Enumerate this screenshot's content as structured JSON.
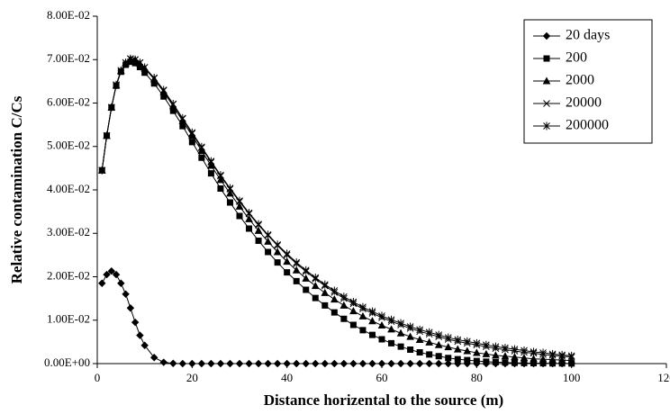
{
  "chart_data": {
    "type": "line",
    "xlabel": "Distance horizental to the source  (m)",
    "ylabel": "Relative contamination C/Cs",
    "x": [
      1,
      2,
      3,
      4,
      5,
      6,
      7,
      8,
      9,
      10,
      12,
      14,
      16,
      18,
      20,
      22,
      24,
      26,
      28,
      30,
      32,
      34,
      36,
      38,
      40,
      42,
      44,
      46,
      48,
      50,
      52,
      54,
      56,
      58,
      60,
      62,
      64,
      66,
      68,
      70,
      72,
      74,
      76,
      78,
      80,
      82,
      84,
      86,
      88,
      90,
      92,
      94,
      96,
      98,
      100
    ],
    "series": [
      {
        "name": "20 days",
        "color": "#000000",
        "marker": "diamond",
        "values": [
          0.0185,
          0.0205,
          0.0213,
          0.0205,
          0.0185,
          0.016,
          0.0128,
          0.0095,
          0.0065,
          0.0042,
          0.0014,
          0.0003,
          5e-05,
          0,
          0,
          0,
          0,
          0,
          0,
          0,
          0,
          0,
          0,
          0,
          0,
          0,
          0,
          0,
          0,
          0,
          0,
          0,
          0,
          0,
          0,
          0,
          0,
          0,
          0,
          0,
          0,
          0,
          0,
          0,
          0,
          0,
          0,
          0,
          0,
          0,
          0,
          0,
          0,
          0,
          0
        ]
      },
      {
        "name": "200",
        "color": "#000000",
        "marker": "square",
        "values": [
          0.0445,
          0.0525,
          0.059,
          0.064,
          0.0672,
          0.0688,
          0.0695,
          0.0692,
          0.0683,
          0.067,
          0.0645,
          0.0615,
          0.0582,
          0.0547,
          0.051,
          0.0474,
          0.0438,
          0.0403,
          0.0371,
          0.034,
          0.0311,
          0.0283,
          0.0257,
          0.0233,
          0.021,
          0.019,
          0.017,
          0.0151,
          0.0134,
          0.0118,
          0.0103,
          0.0089,
          0.0077,
          0.0066,
          0.0056,
          0.0047,
          0.0039,
          0.0032,
          0.0026,
          0.0021,
          0.0017,
          0.0013,
          0.001,
          0.0008,
          0.0006,
          0.00045,
          0.00034,
          0.00025,
          0.00018,
          0.00013,
          0.0001,
          7e-05,
          5e-05,
          4e-05,
          3e-05
        ]
      },
      {
        "name": "2000",
        "color": "#000000",
        "marker": "triangle",
        "values": [
          0.0445,
          0.0525,
          0.059,
          0.0641,
          0.0674,
          0.0692,
          0.0701,
          0.0699,
          0.0691,
          0.068,
          0.0655,
          0.0626,
          0.0593,
          0.0559,
          0.0525,
          0.049,
          0.0456,
          0.0423,
          0.0392,
          0.0362,
          0.0333,
          0.0306,
          0.0281,
          0.0257,
          0.0235,
          0.0215,
          0.0196,
          0.0179,
          0.0163,
          0.0148,
          0.0134,
          0.0121,
          0.0109,
          0.0098,
          0.0088,
          0.0079,
          0.007,
          0.0062,
          0.0055,
          0.0049,
          0.0043,
          0.0038,
          0.0033,
          0.0029,
          0.0025,
          0.0022,
          0.0019,
          0.0017,
          0.0015,
          0.0013,
          0.0011,
          0.001,
          0.0009,
          0.0008,
          0.0007
        ]
      },
      {
        "name": "20000",
        "color": "#000000",
        "marker": "x",
        "values": [
          0.0445,
          0.0525,
          0.059,
          0.0642,
          0.0675,
          0.0693,
          0.0702,
          0.07,
          0.0693,
          0.0682,
          0.0657,
          0.0629,
          0.0597,
          0.0564,
          0.053,
          0.0497,
          0.0464,
          0.0432,
          0.0402,
          0.0373,
          0.0345,
          0.0319,
          0.0295,
          0.0272,
          0.025,
          0.023,
          0.0212,
          0.0195,
          0.0179,
          0.0164,
          0.015,
          0.0138,
          0.0126,
          0.0116,
          0.0106,
          0.0097,
          0.0089,
          0.0081,
          0.0074,
          0.0068,
          0.0062,
          0.0056,
          0.0051,
          0.0047,
          0.0043,
          0.0039,
          0.0035,
          0.0032,
          0.0029,
          0.0026,
          0.0024,
          0.0021,
          0.0019,
          0.0017,
          0.0015
        ]
      },
      {
        "name": "200000",
        "color": "#000000",
        "marker": "asterisk",
        "values": [
          0.0445,
          0.0525,
          0.059,
          0.0642,
          0.0675,
          0.0693,
          0.0702,
          0.07,
          0.0693,
          0.0682,
          0.0658,
          0.063,
          0.0598,
          0.0565,
          0.0532,
          0.0499,
          0.0466,
          0.0434,
          0.0404,
          0.0375,
          0.0347,
          0.0321,
          0.0297,
          0.0274,
          0.0253,
          0.0233,
          0.0215,
          0.0198,
          0.0182,
          0.0168,
          0.0154,
          0.0142,
          0.013,
          0.012,
          0.011,
          0.0101,
          0.0093,
          0.0085,
          0.0078,
          0.0072,
          0.0066,
          0.006,
          0.0055,
          0.0051,
          0.0047,
          0.0043,
          0.0039,
          0.0036,
          0.0033,
          0.003,
          0.0027,
          0.0025,
          0.0022,
          0.002,
          0.0018
        ]
      }
    ],
    "xlim": [
      0,
      120
    ],
    "xticks": [
      0,
      20,
      40,
      60,
      80,
      100,
      120
    ],
    "ylim": [
      0,
      0.08
    ],
    "yticks": [
      {
        "value": 0,
        "label": "0.00E+00"
      },
      {
        "value": 0.01,
        "label": "1.00E-02"
      },
      {
        "value": 0.02,
        "label": "2.00E-02"
      },
      {
        "value": 0.03,
        "label": "3.00E-02"
      },
      {
        "value": 0.04,
        "label": "4.00E-02"
      },
      {
        "value": 0.05,
        "label": "5.00E-02"
      },
      {
        "value": 0.06,
        "label": "6.00E-02"
      },
      {
        "value": 0.07,
        "label": "7.00E-02"
      },
      {
        "value": 0.08,
        "label": "8.00E-02"
      }
    ],
    "grid": false,
    "legend": "upper right"
  }
}
